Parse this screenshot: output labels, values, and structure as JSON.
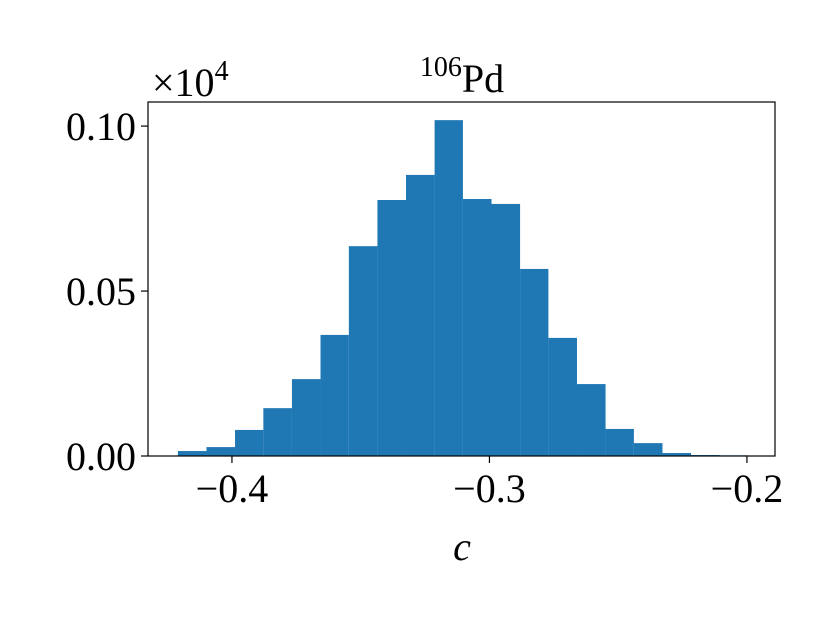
{
  "chart_data": {
    "type": "histogram",
    "title_superscript": "106",
    "title": "Pd",
    "offset_text": "×10",
    "offset_superscript": "4",
    "xlabel": "c",
    "bins": [
      -0.421,
      -0.4099,
      -0.3988,
      -0.3878,
      -0.3767,
      -0.3656,
      -0.3546,
      -0.3435,
      -0.3324,
      -0.3213,
      -0.3103,
      -0.2992,
      -0.2881,
      -0.2771,
      -0.266,
      -0.2549,
      -0.2439,
      -0.2328,
      -0.2217,
      -0.2106,
      -0.1996
    ],
    "counts": [
      0.0015,
      0.0027,
      0.0079,
      0.0145,
      0.0233,
      0.0367,
      0.0636,
      0.0776,
      0.0852,
      0.1018,
      0.0779,
      0.0764,
      0.0567,
      0.0358,
      0.0218,
      0.0082,
      0.0039,
      0.0009,
      0.0003,
      0.0002
    ],
    "color": "#1f77b4",
    "xlim": [
      -0.4326,
      -0.1891
    ],
    "xticks": [
      {
        "value": -0.4,
        "label": "−0.4"
      },
      {
        "value": -0.3,
        "label": "−0.3"
      },
      {
        "value": -0.2,
        "label": "−0.2"
      }
    ],
    "ylim": [
      0,
      0.1073
    ],
    "yticks": [
      {
        "value": 0,
        "label": "0.00"
      },
      {
        "value": 0.05,
        "label": "0.05"
      },
      {
        "value": 0.1,
        "label": "0.10"
      }
    ]
  }
}
